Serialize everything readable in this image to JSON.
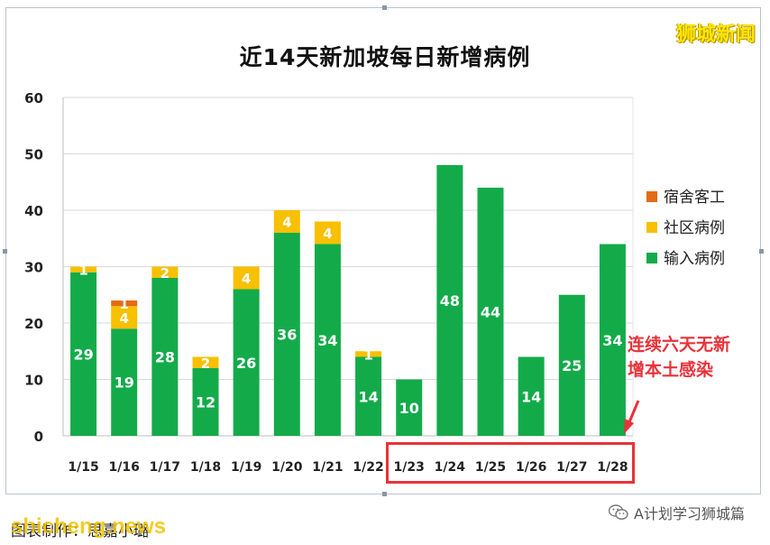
{
  "chart_data": {
    "type": "bar",
    "stacked": true,
    "title": "近14天新加坡每日新增病例",
    "categories": [
      "1/15",
      "1/16",
      "1/17",
      "1/18",
      "1/19",
      "1/20",
      "1/21",
      "1/22",
      "1/23",
      "1/24",
      "1/25",
      "1/26",
      "1/27",
      "1/28"
    ],
    "series": [
      {
        "name": "输入病例",
        "color": "#13ab4a",
        "values": [
          29,
          19,
          28,
          12,
          26,
          36,
          34,
          14,
          10,
          48,
          44,
          14,
          25,
          34
        ]
      },
      {
        "name": "社区病例",
        "color": "#f7c000",
        "values": [
          1,
          4,
          2,
          2,
          4,
          4,
          4,
          1,
          0,
          0,
          0,
          0,
          0,
          0
        ]
      },
      {
        "name": "宿舍客工",
        "color": "#e26b16",
        "values": [
          0,
          1,
          0,
          0,
          0,
          0,
          0,
          0,
          0,
          0,
          0,
          0,
          0,
          0
        ]
      }
    ],
    "legend_order": [
      "宿舍客工",
      "社区病例",
      "输入病例"
    ],
    "legend_position": "right",
    "ylim": [
      0,
      60
    ],
    "yticks": [
      0,
      10,
      20,
      30,
      40,
      50,
      60
    ],
    "grid": true
  },
  "watermark_top": "狮城新闻",
  "callout_text": [
    "连续六天无新",
    "增本土感染"
  ],
  "credit_text": "图表制作：思嘉小璐",
  "site_watermark": "shicheng.news",
  "wechat_label": "A计划学习狮城篇",
  "colors": {
    "callout": "#e8323a",
    "grid": "#d9d9d9"
  },
  "icons": {
    "wechat": "wechat-icon",
    "arrow": "callout-arrow"
  }
}
